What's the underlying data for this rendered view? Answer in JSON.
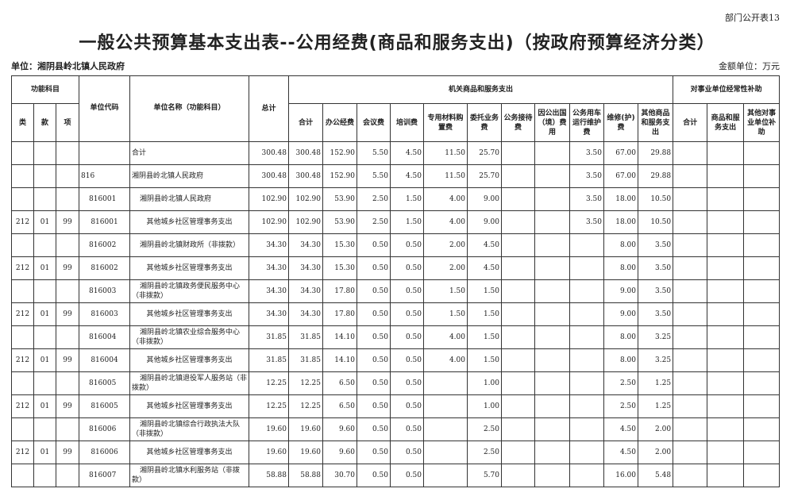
{
  "header": {
    "table_no": "部门公开表13",
    "title": "一般公共预算基本支出表--公用经费(商品和服务支出)（按政府预算经济分类）",
    "unit": "单位：湘阴县岭北镇人民政府",
    "money_unit": "金额单位：万元"
  },
  "columns": {
    "group_func": "功能科目",
    "lei": "类",
    "kuan": "款",
    "xiang": "项",
    "code": "单位代码",
    "name": "单位名称（功能科目）",
    "total": "总计",
    "group_org": "机关商品和服务支出",
    "org": [
      "合计",
      "办公经费",
      "会议费",
      "培训费",
      "专用材料购置费",
      "委托业务费",
      "公务接待费",
      "因公出国（境）费用",
      "公务用车运行维护费",
      "维修(护)费",
      "其他商品和服务支出"
    ],
    "group_sub": "对事业单位经常性补助",
    "sub": [
      "合计",
      "商品和服务支出",
      "其他对事业单位补助"
    ]
  },
  "rows": [
    {
      "lei": "",
      "kuan": "",
      "xiang": "",
      "code": "",
      "name": "合计",
      "v": [
        "300.48",
        "300.48",
        "152.90",
        "5.50",
        "4.50",
        "11.50",
        "25.70",
        "",
        "",
        "3.50",
        "67.00",
        "29.88",
        "",
        "",
        ""
      ]
    },
    {
      "lei": "",
      "kuan": "",
      "xiang": "",
      "code": "816",
      "name": "湘阴县岭北镇人民政府",
      "v": [
        "300.48",
        "300.48",
        "152.90",
        "5.50",
        "4.50",
        "11.50",
        "25.70",
        "",
        "",
        "3.50",
        "67.00",
        "29.88",
        "",
        "",
        ""
      ]
    },
    {
      "lei": "",
      "kuan": "",
      "xiang": "",
      "code": "816001",
      "name": "湘阴县岭北镇人民政府",
      "v": [
        "102.90",
        "102.90",
        "53.90",
        "2.50",
        "1.50",
        "4.00",
        "9.00",
        "",
        "",
        "3.50",
        "18.00",
        "10.50",
        "",
        "",
        ""
      ]
    },
    {
      "lei": "212",
      "kuan": "01",
      "xiang": "99",
      "code": "816001",
      "name": "其他城乡社区管理事务支出",
      "v": [
        "102.90",
        "102.90",
        "53.90",
        "2.50",
        "1.50",
        "4.00",
        "9.00",
        "",
        "",
        "3.50",
        "18.00",
        "10.50",
        "",
        "",
        ""
      ]
    },
    {
      "lei": "",
      "kuan": "",
      "xiang": "",
      "code": "816002",
      "name": "湘阴县岭北镇财政所（非拨款）",
      "v": [
        "34.30",
        "34.30",
        "15.30",
        "0.50",
        "0.50",
        "2.00",
        "4.50",
        "",
        "",
        "",
        "8.00",
        "3.50",
        "",
        "",
        ""
      ]
    },
    {
      "lei": "212",
      "kuan": "01",
      "xiang": "99",
      "code": "816002",
      "name": "其他城乡社区管理事务支出",
      "v": [
        "34.30",
        "34.30",
        "15.30",
        "0.50",
        "0.50",
        "2.00",
        "4.50",
        "",
        "",
        "",
        "8.00",
        "3.50",
        "",
        "",
        ""
      ]
    },
    {
      "lei": "",
      "kuan": "",
      "xiang": "",
      "code": "816003",
      "name": "湘阴县岭北镇政务便民服务中心（非拨款）",
      "v": [
        "34.30",
        "34.30",
        "17.80",
        "0.50",
        "0.50",
        "1.50",
        "1.50",
        "",
        "",
        "",
        "9.00",
        "3.50",
        "",
        "",
        ""
      ]
    },
    {
      "lei": "212",
      "kuan": "01",
      "xiang": "99",
      "code": "816003",
      "name": "其他城乡社区管理事务支出",
      "v": [
        "34.30",
        "34.30",
        "17.80",
        "0.50",
        "0.50",
        "1.50",
        "1.50",
        "",
        "",
        "",
        "9.00",
        "3.50",
        "",
        "",
        ""
      ]
    },
    {
      "lei": "",
      "kuan": "",
      "xiang": "",
      "code": "816004",
      "name": "湘阴县岭北镇农业综合服务中心（非拨款）",
      "v": [
        "31.85",
        "31.85",
        "14.10",
        "0.50",
        "0.50",
        "4.00",
        "1.50",
        "",
        "",
        "",
        "8.00",
        "3.25",
        "",
        "",
        ""
      ]
    },
    {
      "lei": "212",
      "kuan": "01",
      "xiang": "99",
      "code": "816004",
      "name": "其他城乡社区管理事务支出",
      "v": [
        "31.85",
        "31.85",
        "14.10",
        "0.50",
        "0.50",
        "4.00",
        "1.50",
        "",
        "",
        "",
        "8.00",
        "3.25",
        "",
        "",
        ""
      ]
    },
    {
      "lei": "",
      "kuan": "",
      "xiang": "",
      "code": "816005",
      "name": "湘阴县岭北镇退役军人服务站（非拨款）",
      "v": [
        "12.25",
        "12.25",
        "6.50",
        "0.50",
        "0.50",
        "",
        "1.00",
        "",
        "",
        "",
        "2.50",
        "1.25",
        "",
        "",
        ""
      ]
    },
    {
      "lei": "212",
      "kuan": "01",
      "xiang": "99",
      "code": "816005",
      "name": "其他城乡社区管理事务支出",
      "v": [
        "12.25",
        "12.25",
        "6.50",
        "0.50",
        "0.50",
        "",
        "1.00",
        "",
        "",
        "",
        "2.50",
        "1.25",
        "",
        "",
        ""
      ]
    },
    {
      "lei": "",
      "kuan": "",
      "xiang": "",
      "code": "816006",
      "name": "湘阴县岭北镇综合行政执法大队（非拨款）",
      "v": [
        "19.60",
        "19.60",
        "9.60",
        "0.50",
        "0.50",
        "",
        "2.50",
        "",
        "",
        "",
        "4.50",
        "2.00",
        "",
        "",
        ""
      ]
    },
    {
      "lei": "212",
      "kuan": "01",
      "xiang": "99",
      "code": "816006",
      "name": "其他城乡社区管理事务支出",
      "v": [
        "19.60",
        "19.60",
        "9.60",
        "0.50",
        "0.50",
        "",
        "2.50",
        "",
        "",
        "",
        "4.50",
        "2.00",
        "",
        "",
        ""
      ]
    },
    {
      "lei": "",
      "kuan": "",
      "xiang": "",
      "code": "816007",
      "name": "湘阴县岭北镇水利服务站（非拨款）",
      "v": [
        "58.88",
        "58.88",
        "30.70",
        "0.50",
        "0.50",
        "",
        "5.70",
        "",
        "",
        "",
        "16.00",
        "5.48",
        "",
        "",
        ""
      ]
    }
  ]
}
